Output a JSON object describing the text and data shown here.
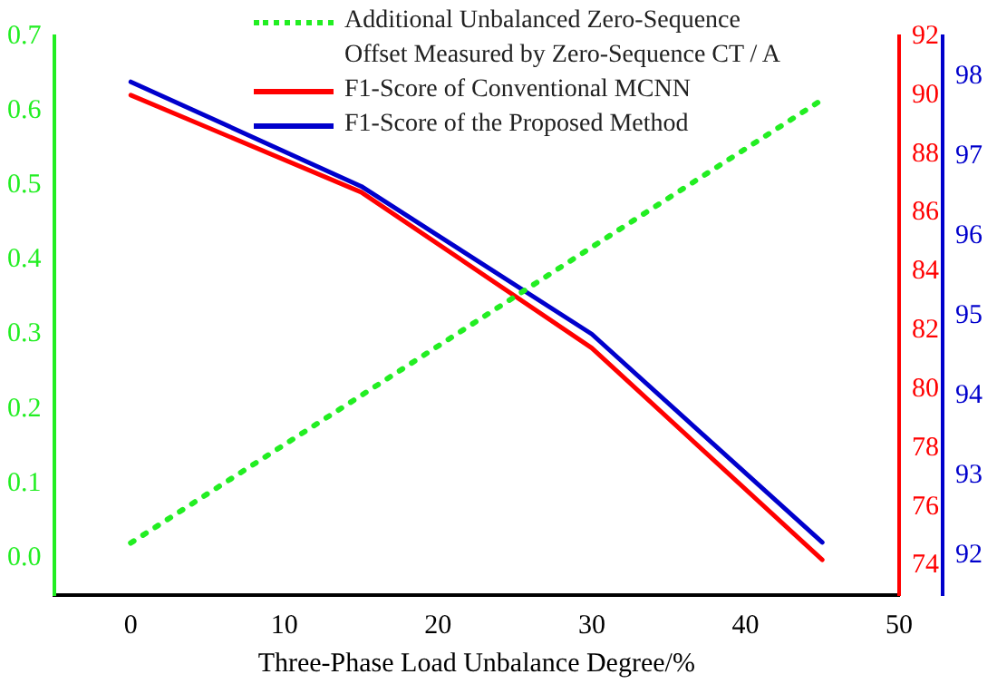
{
  "chart_data": {
    "type": "line",
    "xlabel": "Three-Phase Load Unbalance Degree/%",
    "x": [
      0,
      15,
      30,
      45
    ],
    "series": [
      {
        "name": "Additional Unbalanced Zero-Sequence Offset Measured by Zero-Sequence CT / A",
        "color": "#22ee22",
        "values": [
          0.02,
          0.218,
          0.417,
          0.615
        ],
        "line_style": "dotted",
        "axis": "y"
      },
      {
        "name": "F1-Score of Conventional MCNN",
        "color": "#ff0000",
        "values": [
          90.0,
          86.7,
          81.4,
          74.2
        ],
        "axis": "y2"
      },
      {
        "name": "F1-Score of the Proposed Method",
        "color": "#0000cc",
        "values": [
          97.93,
          96.62,
          94.77,
          92.16
        ],
        "axis": "y3"
      }
    ],
    "xlim": [
      -5,
      50
    ],
    "xticks": [
      0,
      10,
      20,
      30,
      40,
      50
    ],
    "ylim": [
      -0.05,
      0.7
    ],
    "yticks": [
      {
        "value": 0,
        "label": "0.0"
      },
      0.1,
      0.2,
      0.3,
      0.4,
      0.5,
      0.6,
      0.7
    ],
    "y2lim": [
      73,
      92
    ],
    "y2ticks": [
      74,
      76,
      78,
      80,
      82,
      84,
      86,
      88,
      90,
      92
    ],
    "y3lim": [
      91.5,
      98.5
    ],
    "y3ticks": [
      92,
      93,
      94,
      95,
      96,
      97,
      98
    ],
    "legend": "top",
    "marker": "none",
    "grid": false
  }
}
